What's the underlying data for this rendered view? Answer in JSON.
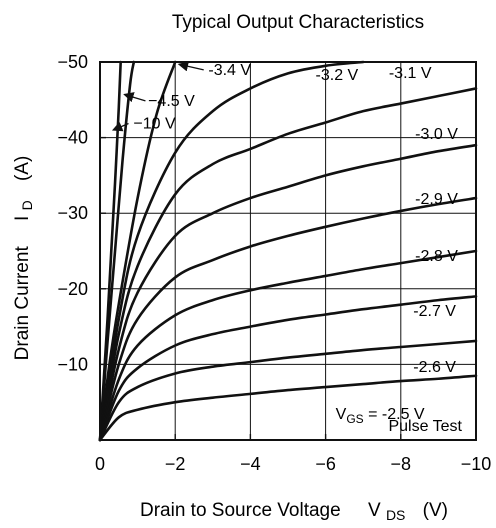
{
  "chart_data": {
    "type": "line",
    "title": "Typical Output Characteristics",
    "xlabel": {
      "main": "Drain to Source Voltage",
      "symbol": "V",
      "subscript": "DS",
      "unit": "(V)"
    },
    "ylabel": {
      "main": "Drain Current",
      "symbol": "I",
      "subscript": "D",
      "unit": "(A)"
    },
    "xlim": [
      0,
      -10
    ],
    "ylim": [
      0,
      -50
    ],
    "x_ticks": [
      "0",
      "−2",
      "−4",
      "−6",
      "−8",
      "−10"
    ],
    "x_tick_values": [
      0,
      -2,
      -4,
      -6,
      -8,
      -10
    ],
    "y_ticks": [
      "−50",
      "−40",
      "−30",
      "−20",
      "−10"
    ],
    "y_tick_values": [
      -50,
      -40,
      -30,
      -20,
      -10
    ],
    "grid": true,
    "annotation": "Pulse Test",
    "series": [
      {
        "label": "−10 V",
        "x": [
          0,
          -0.1,
          -0.2,
          -0.3,
          -0.4,
          -0.5,
          -0.55
        ],
        "y": [
          0,
          -8,
          -16,
          -25,
          -34,
          -44,
          -50
        ]
      },
      {
        "label": "−4.5 V",
        "x": [
          0,
          -0.1,
          -0.2,
          -0.4,
          -0.6,
          -0.8,
          -0.9
        ],
        "y": [
          0,
          -6.5,
          -13,
          -25,
          -37,
          -47,
          -50
        ]
      },
      {
        "label": "-3.4 V",
        "x": [
          0,
          -0.25,
          -0.5,
          -1,
          -1.5,
          -2
        ],
        "y": [
          0,
          -10,
          -18,
          -32,
          -43,
          -50
        ]
      },
      {
        "label": "-3.2 V",
        "x": [
          0,
          -0.5,
          -1,
          -2,
          -3,
          -4,
          -5,
          -6,
          -7
        ],
        "y": [
          0,
          -16,
          -27,
          -38,
          -43.5,
          -46.5,
          -48.5,
          -49.5,
          -50
        ]
      },
      {
        "label": "-3.1 V",
        "x": [
          0,
          -0.5,
          -1,
          -2,
          -3,
          -4,
          -5,
          -6,
          -7,
          -8,
          -9,
          -10
        ],
        "y": [
          0,
          -14,
          -23,
          -32.5,
          -36.5,
          -38.5,
          -40.5,
          -42,
          -43.5,
          -44.5,
          -45.5,
          -46.5
        ]
      },
      {
        "label": "-3.0 V",
        "x": [
          0,
          -0.5,
          -1,
          -2,
          -3,
          -4,
          -5,
          -6,
          -7,
          -8,
          -9,
          -10
        ],
        "y": [
          0,
          -12,
          -19.5,
          -27,
          -30,
          -32,
          -33.5,
          -35,
          -36.2,
          -37.2,
          -38.2,
          -39
        ]
      },
      {
        "label": "-2.9 V",
        "x": [
          0,
          -0.5,
          -1,
          -2,
          -3,
          -4,
          -5,
          -6,
          -7,
          -8,
          -9,
          -10
        ],
        "y": [
          0,
          -10,
          -16,
          -21.5,
          -23.8,
          -25.6,
          -27,
          -28.2,
          -29.3,
          -30.3,
          -31.2,
          -32
        ]
      },
      {
        "label": "-2.8 V",
        "x": [
          0,
          -0.5,
          -1,
          -2,
          -3,
          -4,
          -5,
          -6,
          -7,
          -8,
          -9,
          -10
        ],
        "y": [
          0,
          -8,
          -12.5,
          -16.5,
          -18.5,
          -19.8,
          -20.8,
          -21.7,
          -22.6,
          -23.4,
          -24.2,
          -25
        ]
      },
      {
        "label": "-2.7 V",
        "x": [
          0,
          -0.5,
          -1,
          -2,
          -3,
          -4,
          -5,
          -6,
          -7,
          -8,
          -9,
          -10
        ],
        "y": [
          0,
          -6.5,
          -9.5,
          -12.5,
          -14,
          -15,
          -15.9,
          -16.6,
          -17.3,
          -17.9,
          -18.5,
          -19
        ]
      },
      {
        "label": "-2.6 V",
        "x": [
          0,
          -0.5,
          -1,
          -2,
          -3,
          -4,
          -5,
          -6,
          -7,
          -8,
          -9,
          -10
        ],
        "y": [
          0,
          -5,
          -7,
          -8.8,
          -9.7,
          -10.3,
          -10.9,
          -11.4,
          -11.9,
          -12.3,
          -12.7,
          -13.1
        ]
      },
      {
        "label": "V_GS = -2.5 V",
        "x": [
          0,
          -0.5,
          -1,
          -2,
          -3,
          -4,
          -5,
          -6,
          -7,
          -8,
          -9,
          -10
        ],
        "y": [
          0,
          -3,
          -4,
          -5,
          -5.6,
          -6.1,
          -6.6,
          -7,
          -7.4,
          -7.8,
          -8.1,
          -8.5
        ]
      }
    ],
    "curve_labels": [
      {
        "text": "−10 V",
        "x": -1.45,
        "y": -41.2,
        "arrow_to": [
          -0.35,
          -41.0
        ]
      },
      {
        "text": "−4.5 V",
        "x": -1.9,
        "y": -44.2,
        "arrow_to": [
          -0.65,
          -45.7
        ]
      },
      {
        "text": "-3.4 V",
        "x": -3.45,
        "y": -48.3,
        "arrow_to": [
          -2.1,
          -49.7
        ]
      },
      {
        "text": "-3.2 V",
        "x": -6.3,
        "y": -47.6
      },
      {
        "text": "-3.1 V",
        "x": -8.25,
        "y": -47.9
      },
      {
        "text": "-3.0 V",
        "x": -8.95,
        "y": -39.8
      },
      {
        "text": "-2.9 V",
        "x": -8.95,
        "y": -31.2
      },
      {
        "text": "-2.8 V",
        "x": -8.95,
        "y": -23.7
      },
      {
        "text": "-2.7 V",
        "x": -8.9,
        "y": -16.4
      },
      {
        "text": "-2.6 V",
        "x": -8.9,
        "y": -9.0
      },
      {
        "prefix": "V",
        "subscript": "GS",
        "suffix": " = -2.5 V",
        "x": -7.45,
        "y": -2.8
      }
    ]
  }
}
